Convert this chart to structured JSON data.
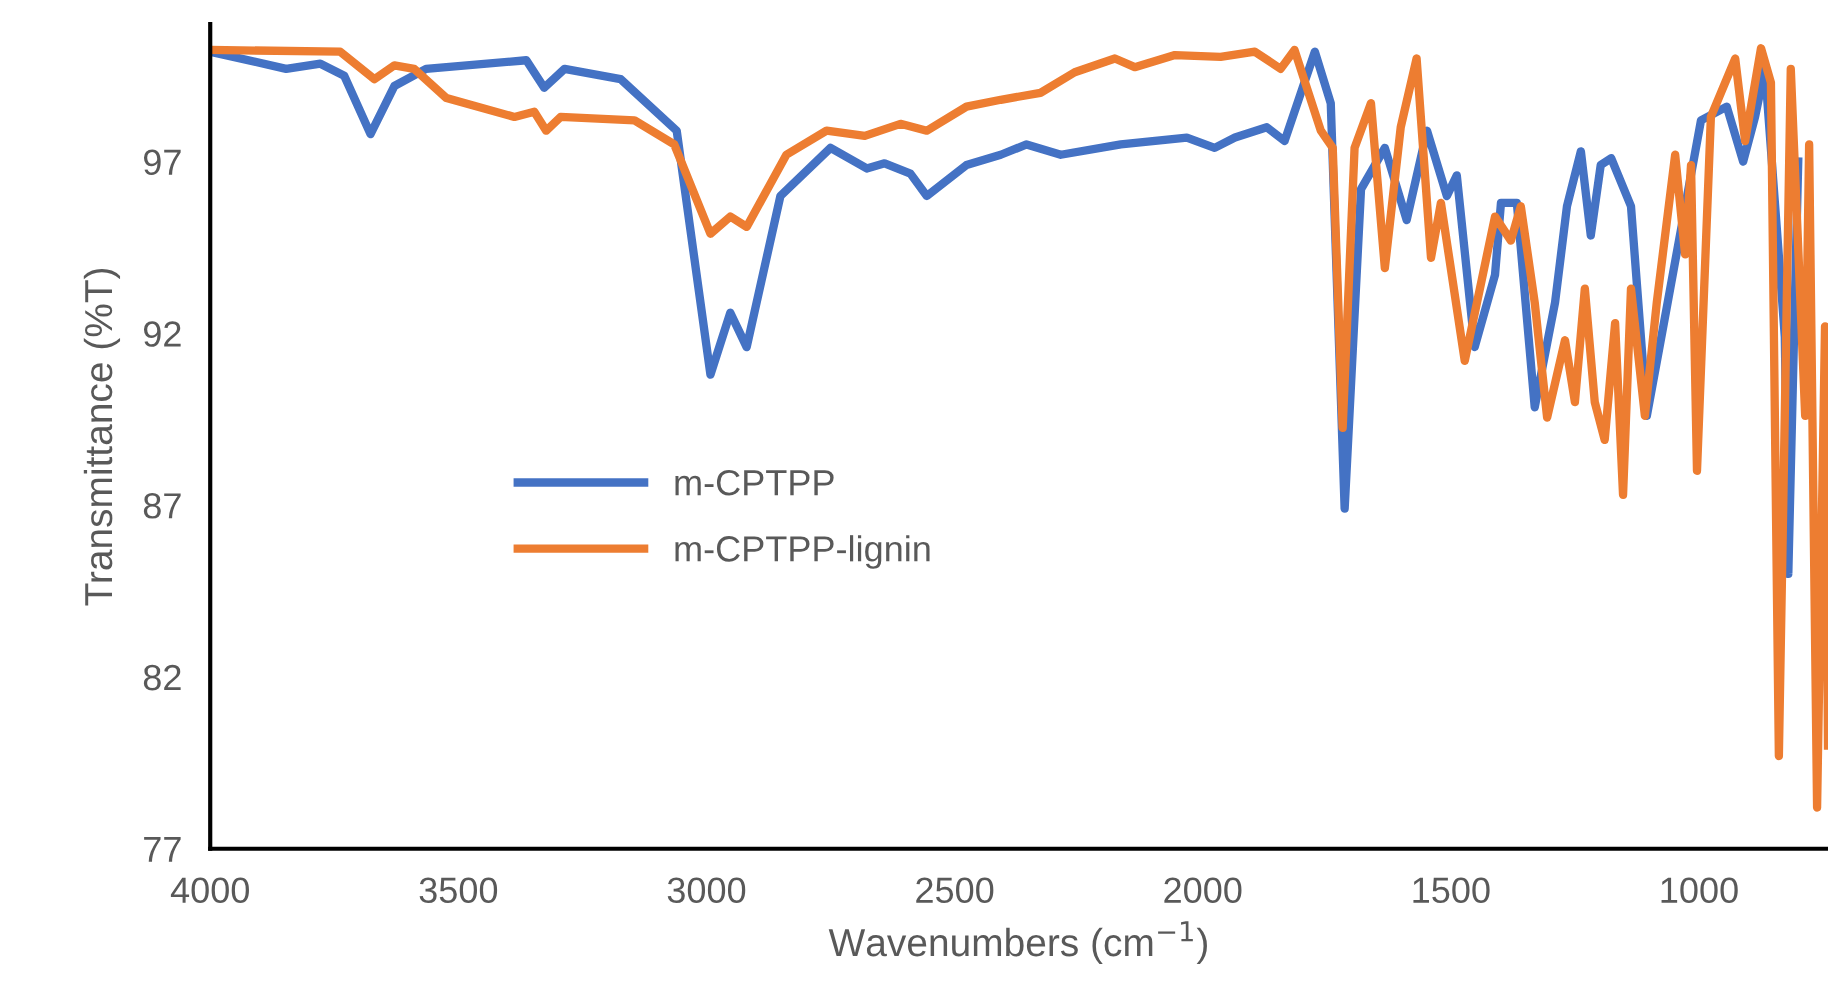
{
  "chart_data": {
    "type": "line",
    "xlabel": "Wavenumbers (cm$^{−1}$)",
    "ylabel": "Transmittance (%T)",
    "xlim": [
      4000,
      740
    ],
    "xticks": [
      4000,
      3500,
      3000,
      2500,
      2000,
      1500,
      1000
    ],
    "ylim": [
      77,
      101
    ],
    "yticks": [
      77,
      82,
      87,
      92,
      97
    ],
    "grid": false,
    "legend": "left",
    "marker": "none",
    "line_style": "solid",
    "series": [
      {
        "name": "m-CPTPP",
        "color": "#4472c4",
        "x": [
          4000,
          3847,
          3778,
          3730,
          3677,
          3629,
          3565,
          3363,
          3327,
          3286,
          3173,
          3060,
          2992,
          2952,
          2919,
          2851,
          2750,
          2677,
          2641,
          2589,
          2556,
          2476,
          2407,
          2355,
          2286,
          2165,
          2032,
          1976,
          1935,
          1871,
          1835,
          1774,
          1742,
          1714,
          1681,
          1633,
          1589,
          1548,
          1508,
          1488,
          1452,
          1411,
          1399,
          1367,
          1331,
          1290,
          1266,
          1238,
          1218,
          1198,
          1177,
          1137,
          1105,
          1065,
          996,
          944,
          911,
          887,
          867,
          827,
          820,
          800
        ],
        "values": [
          100.2,
          99.7,
          99.85,
          99.5,
          97.8,
          99.2,
          99.7,
          99.95,
          99.15,
          99.7,
          99.4,
          97.9,
          90.8,
          92.6,
          91.6,
          96.0,
          97.4,
          96.8,
          96.95,
          96.65,
          96.0,
          96.9,
          97.2,
          97.5,
          97.2,
          97.5,
          97.7,
          97.4,
          97.7,
          98.0,
          97.6,
          100.2,
          98.7,
          86.9,
          96.2,
          97.4,
          95.3,
          97.9,
          96.0,
          96.6,
          91.6,
          93.7,
          95.8,
          95.8,
          89.85,
          92.9,
          95.7,
          97.3,
          94.85,
          96.9,
          97.1,
          95.7,
          89.6,
          92.75,
          98.2,
          98.6,
          97.0,
          98.3,
          99.7,
          91.9,
          85.0,
          97.0
        ]
      },
      {
        "name": "m-CPTPP-lignin",
        "color": "#ed7d31",
        "x": [
          4000,
          3738,
          3669,
          3629,
          3589,
          3524,
          3387,
          3347,
          3323,
          3294,
          3145,
          3065,
          2992,
          2952,
          2919,
          2839,
          2758,
          2681,
          2609,
          2556,
          2476,
          2407,
          2327,
          2258,
          2177,
          2137,
          2056,
          1964,
          1895,
          1843,
          1815,
          1762,
          1738,
          1718,
          1694,
          1661,
          1633,
          1601,
          1569,
          1540,
          1520,
          1472,
          1411,
          1379,
          1359,
          1331,
          1306,
          1270,
          1250,
          1230,
          1210,
          1190,
          1169,
          1153,
          1137,
          1109,
          1085,
          1048,
          1028,
          1016,
          1004,
          976,
          927,
          907,
          875,
          855,
          839,
          815,
          786,
          778,
          762,
          746,
          740
        ],
        "values": [
          100.25,
          100.2,
          99.4,
          99.8,
          99.7,
          98.85,
          98.3,
          98.45,
          97.9,
          98.3,
          98.2,
          97.5,
          94.9,
          95.4,
          95.1,
          97.2,
          97.9,
          97.75,
          98.1,
          97.9,
          98.6,
          98.8,
          99.0,
          99.6,
          100.0,
          99.75,
          100.1,
          100.05,
          100.2,
          99.7,
          100.25,
          97.9,
          97.4,
          89.25,
          97.4,
          98.7,
          93.9,
          98.0,
          100.0,
          94.2,
          95.8,
          91.2,
          95.4,
          94.7,
          95.7,
          92.9,
          89.55,
          91.8,
          90.0,
          93.3,
          90.0,
          88.9,
          92.3,
          87.3,
          93.3,
          89.6,
          92.9,
          97.2,
          94.3,
          96.9,
          88.0,
          98.3,
          100.0,
          97.6,
          100.3,
          99.3,
          79.7,
          99.7,
          89.6,
          97.5,
          78.2,
          92.2,
          80.0
        ]
      }
    ]
  }
}
